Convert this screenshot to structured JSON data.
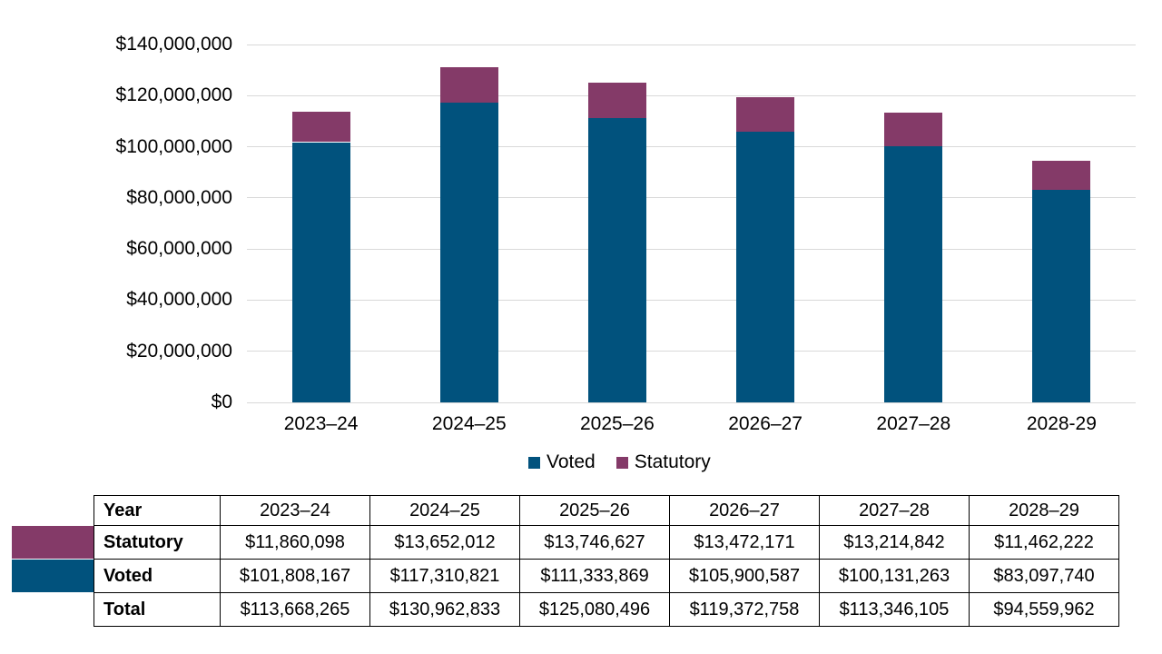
{
  "colors": {
    "voted": "#01527D",
    "statutory": "#843A68",
    "gridline": "#D9D9D9",
    "text": "#000000",
    "table_border": "#000000"
  },
  "chart_data": {
    "type": "bar",
    "stacked": true,
    "grid": true,
    "legend_position": "bottom",
    "title": "",
    "xlabel": "",
    "ylabel": "",
    "ylim": [
      0,
      140000000
    ],
    "categories": [
      "2023–24",
      "2024–25",
      "2025–26",
      "2026–27",
      "2027–28",
      "2028-29"
    ],
    "series": [
      {
        "name": "Voted",
        "color_key": "voted",
        "values": [
          101808167,
          117310821,
          111333869,
          105900587,
          100131263,
          83097740
        ]
      },
      {
        "name": "Statutory",
        "color_key": "statutory",
        "values": [
          11860098,
          13652012,
          13746627,
          13472171,
          13214842,
          11462222
        ]
      }
    ],
    "totals": [
      113668265,
      130962833,
      125080496,
      119372758,
      113346105,
      94559962
    ],
    "y_ticks": [
      {
        "value": 0,
        "label": "$0"
      },
      {
        "value": 20000000,
        "label": "$20,000,000"
      },
      {
        "value": 40000000,
        "label": "$40,000,000"
      },
      {
        "value": 60000000,
        "label": "$60,000,000"
      },
      {
        "value": 80000000,
        "label": "$80,000,000"
      },
      {
        "value": 100000000,
        "label": "$100,000,000"
      },
      {
        "value": 120000000,
        "label": "$120,000,000"
      },
      {
        "value": 140000000,
        "label": "$140,000,000"
      }
    ],
    "legend": [
      {
        "label": "Voted",
        "color_key": "voted"
      },
      {
        "label": "Statutory",
        "color_key": "statutory"
      }
    ]
  },
  "table": {
    "header": {
      "label": "Year",
      "columns": [
        "2023–24",
        "2024–25",
        "2025–26",
        "2026–27",
        "2027–28",
        "2028–29"
      ]
    },
    "rows": [
      {
        "label": "Statutory",
        "swatch": "statutory",
        "values": [
          "$11,860,098",
          "$13,652,012",
          "$13,746,627",
          "$13,472,171",
          "$13,214,842",
          "$11,462,222"
        ]
      },
      {
        "label": "Voted",
        "swatch": "voted",
        "values": [
          "$101,808,167",
          "$117,310,821",
          "$111,333,869",
          "$105,900,587",
          "$100,131,263",
          "$83,097,740"
        ]
      },
      {
        "label": "Total",
        "values": [
          "$113,668,265",
          "$130,962,833",
          "$125,080,496",
          "$119,372,758",
          "$113,346,105",
          "$94,559,962"
        ]
      }
    ]
  }
}
